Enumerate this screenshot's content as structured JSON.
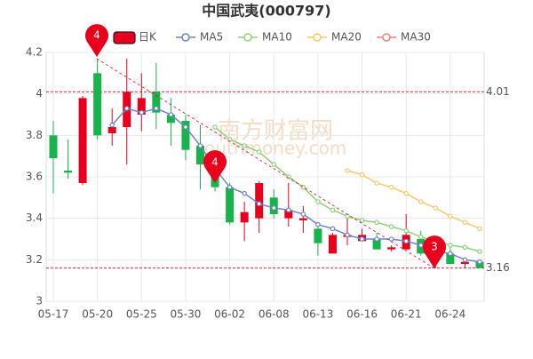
{
  "chart_data": {
    "type": "candlestick",
    "title": "中国武夷(000797)",
    "watermark": [
      "南方财富网",
      "southmoney.com"
    ],
    "categories": [
      "05-17",
      null,
      null,
      "05-20",
      null,
      null,
      "05-25",
      null,
      null,
      "05-30",
      null,
      null,
      "06-02",
      null,
      null,
      "06-08",
      null,
      null,
      "06-13",
      null,
      null,
      "06-16",
      null,
      null,
      "06-21",
      null,
      null,
      "06-24",
      null,
      null
    ],
    "ylim": [
      3,
      4.2
    ],
    "yticks": [
      3,
      3.2,
      3.4,
      3.6,
      3.8,
      4,
      4.2
    ],
    "grid": true,
    "hlines": [
      4.01,
      3.16
    ],
    "pins": [
      "4",
      "4",
      "3"
    ],
    "series": [
      {
        "name": "日K",
        "type": "candlestick",
        "up_color": "#e8001c",
        "down_color": "#19b34c",
        "open": [
          3.8,
          3.63,
          3.57,
          4.1,
          3.81,
          3.84,
          3.9,
          4.01,
          3.9,
          3.87,
          3.75,
          3.6,
          3.55,
          3.38,
          3.4,
          3.5,
          3.4,
          3.39,
          3.35,
          3.23,
          3.31,
          3.29,
          3.3,
          3.25,
          3.25,
          3.3,
          3.23,
          3.23,
          3.18,
          3.19
        ],
        "high": [
          3.87,
          3.78,
          3.99,
          4.17,
          3.93,
          4.17,
          4.1,
          4.15,
          3.98,
          3.9,
          3.85,
          3.63,
          3.57,
          3.48,
          3.58,
          3.54,
          3.57,
          3.46,
          3.37,
          3.33,
          3.42,
          3.35,
          3.33,
          3.27,
          3.42,
          3.34,
          3.28,
          3.26,
          3.2,
          3.2
        ],
        "low": [
          3.52,
          3.59,
          3.56,
          3.78,
          3.75,
          3.66,
          3.82,
          3.83,
          3.75,
          3.68,
          3.54,
          3.53,
          3.37,
          3.29,
          3.33,
          3.4,
          3.36,
          3.33,
          3.22,
          3.23,
          3.27,
          3.29,
          3.25,
          3.24,
          3.25,
          3.22,
          3.16,
          3.18,
          3.16,
          3.16
        ],
        "close": [
          3.69,
          3.62,
          3.98,
          3.8,
          3.84,
          4.01,
          3.98,
          3.91,
          3.86,
          3.73,
          3.66,
          3.55,
          3.38,
          3.43,
          3.57,
          3.42,
          3.44,
          3.4,
          3.28,
          3.32,
          3.32,
          3.32,
          3.25,
          3.26,
          3.32,
          3.23,
          3.24,
          3.18,
          3.19,
          3.16
        ]
      },
      {
        "name": "MA5",
        "type": "line",
        "color": "#6d86c7",
        "values": [
          null,
          null,
          null,
          null,
          3.85,
          3.93,
          3.91,
          3.93,
          3.9,
          3.84,
          3.75,
          3.64,
          3.55,
          3.52,
          3.47,
          3.45,
          3.44,
          3.42,
          3.37,
          3.35,
          3.32,
          3.3,
          3.3,
          3.3,
          3.29,
          3.27,
          3.24,
          3.23,
          3.2,
          3.19
        ]
      },
      {
        "name": "MA10",
        "type": "line",
        "color": "#8fd17a",
        "values": [
          null,
          null,
          null,
          null,
          null,
          null,
          null,
          null,
          null,
          null,
          null,
          3.84,
          3.78,
          3.75,
          3.72,
          3.66,
          3.6,
          3.55,
          3.48,
          3.44,
          3.41,
          3.39,
          3.38,
          3.36,
          3.34,
          3.31,
          3.29,
          3.27,
          3.26,
          3.24
        ]
      },
      {
        "name": "MA20",
        "type": "line",
        "color": "#f5cb6a",
        "values": [
          null,
          null,
          null,
          null,
          null,
          null,
          null,
          null,
          null,
          null,
          null,
          null,
          null,
          null,
          null,
          null,
          null,
          null,
          null,
          null,
          3.63,
          3.61,
          3.57,
          3.55,
          3.52,
          3.48,
          3.45,
          3.41,
          3.38,
          3.35
        ]
      },
      {
        "name": "MA30",
        "type": "line",
        "color": "#f08080",
        "values": [
          null,
          null,
          null,
          null,
          null,
          null,
          null,
          null,
          null,
          null,
          null,
          null,
          null,
          null,
          null,
          null,
          null,
          null,
          null,
          null,
          null,
          null,
          null,
          null,
          null,
          null,
          null,
          null,
          null,
          null
        ]
      }
    ]
  }
}
